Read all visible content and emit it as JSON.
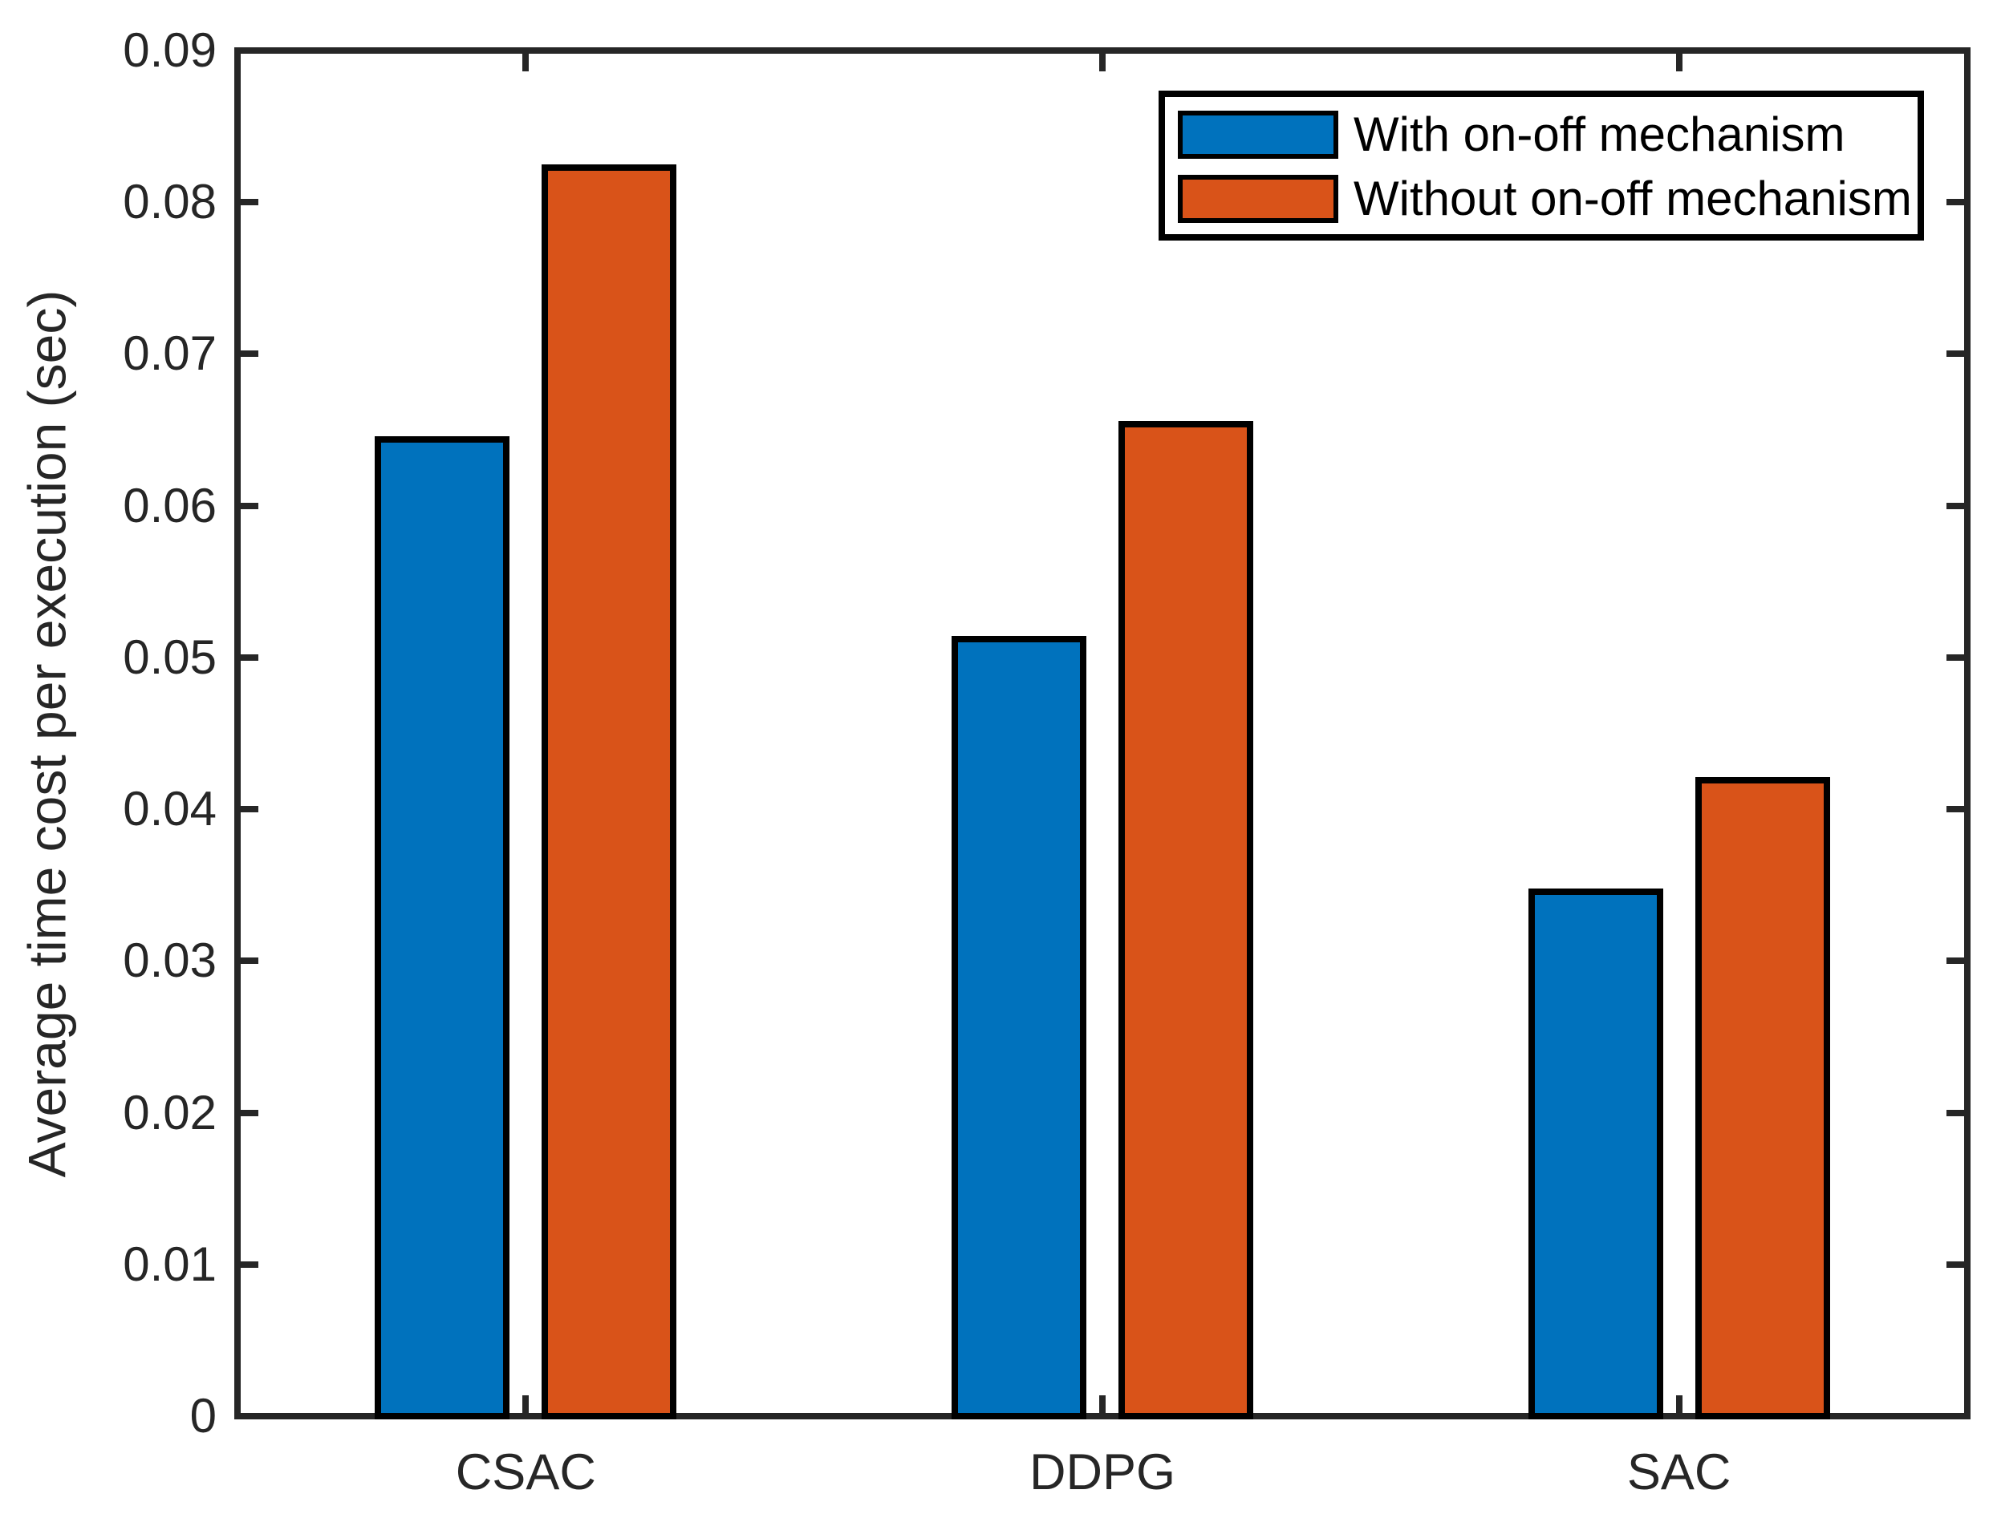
{
  "chart_data": {
    "type": "bar",
    "title": "",
    "xlabel": "",
    "ylabel": "Average time cost per execution (sec)",
    "categories": [
      "CSAC",
      "DDPG",
      "SAC"
    ],
    "series": [
      {
        "name": "With on-off mechanism",
        "color": "#0072BD",
        "values": [
          0.0646,
          0.0514,
          0.0348
        ]
      },
      {
        "name": "Without on-off mechanism",
        "color": "#D95319",
        "values": [
          0.0825,
          0.0656,
          0.0421
        ]
      }
    ],
    "ylim": [
      0,
      0.09
    ],
    "yticks": [
      0,
      0.01,
      0.02,
      0.03,
      0.04,
      0.05,
      0.06,
      0.07,
      0.08,
      0.09
    ],
    "ytick_labels": [
      "0",
      "0.01",
      "0.02",
      "0.03",
      "0.04",
      "0.05",
      "0.06",
      "0.07",
      "0.08",
      "0.09"
    ],
    "grid": false,
    "legend_position": "top-right",
    "bar_edge_color": "#000000",
    "axis_color": "#262626"
  }
}
